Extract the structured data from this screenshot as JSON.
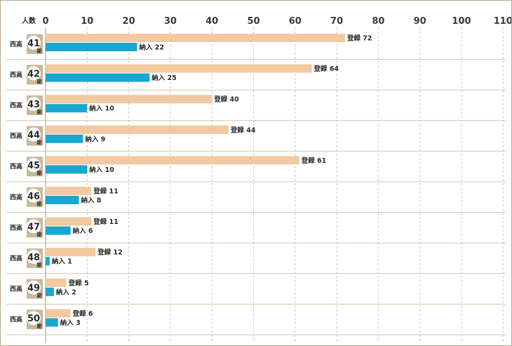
{
  "chart_data": {
    "type": "bar",
    "orientation": "horizontal",
    "unit_label": "人数",
    "row_prefix": "西高",
    "row_suffix": "期",
    "categories": [
      "41",
      "42",
      "43",
      "44",
      "45",
      "46",
      "47",
      "48",
      "49",
      "50"
    ],
    "series": [
      {
        "name": "登録",
        "values": [
          72,
          64,
          40,
          44,
          61,
          11,
          11,
          12,
          5,
          6
        ]
      },
      {
        "name": "納入",
        "values": [
          22,
          25,
          10,
          9,
          10,
          8,
          6,
          1,
          2,
          3
        ]
      }
    ],
    "xlim": [
      0,
      110
    ],
    "xticks": [
      0,
      10,
      20,
      30,
      40,
      50,
      60,
      70,
      80,
      90,
      100,
      110
    ],
    "grid": true,
    "colors": {
      "登録": "#f2c9a1",
      "納入": "#1aa7cf",
      "grid": "#cfc6b0",
      "badge_bg": "#c9b89a"
    }
  }
}
